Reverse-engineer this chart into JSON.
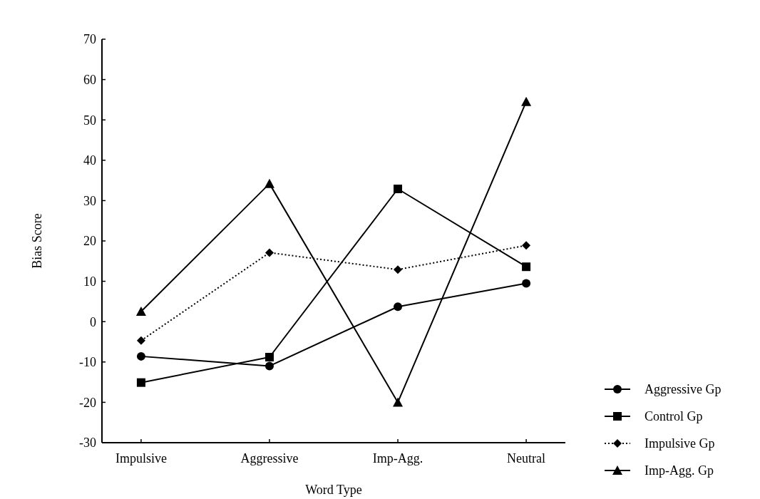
{
  "chart_data": {
    "type": "line",
    "xlabel": "Word Type",
    "ylabel": "Bias Score",
    "categories": [
      "Impulsive",
      "Aggressive",
      "Imp-Agg.",
      "Neutral"
    ],
    "series": [
      {
        "name": "Aggressive Gp",
        "color": "#000000",
        "marker": "circle",
        "values": [
          -8.6,
          -11,
          3.7,
          9.5
        ]
      },
      {
        "name": "Control Gp",
        "color": "#000000",
        "marker": "square",
        "values": [
          -15.1,
          -8.8,
          32.9,
          13.6
        ]
      },
      {
        "name": "Impulsive Gp",
        "color": "#000000",
        "marker": "diamond",
        "line_style": "dotted",
        "values": [
          -4.7,
          17.1,
          12.9,
          18.9
        ]
      },
      {
        "name": "Imp-Agg. Gp",
        "color": "#000000",
        "marker": "triangle",
        "values": [
          2.5,
          34.2,
          -20,
          54.5
        ]
      }
    ],
    "ylim": [
      -30,
      70
    ],
    "yticks": [
      -30,
      -20,
      -10,
      0,
      10,
      20,
      30,
      40,
      50,
      60,
      70
    ],
    "grid": false,
    "legend": "bottom right",
    "line_style": "solid"
  }
}
